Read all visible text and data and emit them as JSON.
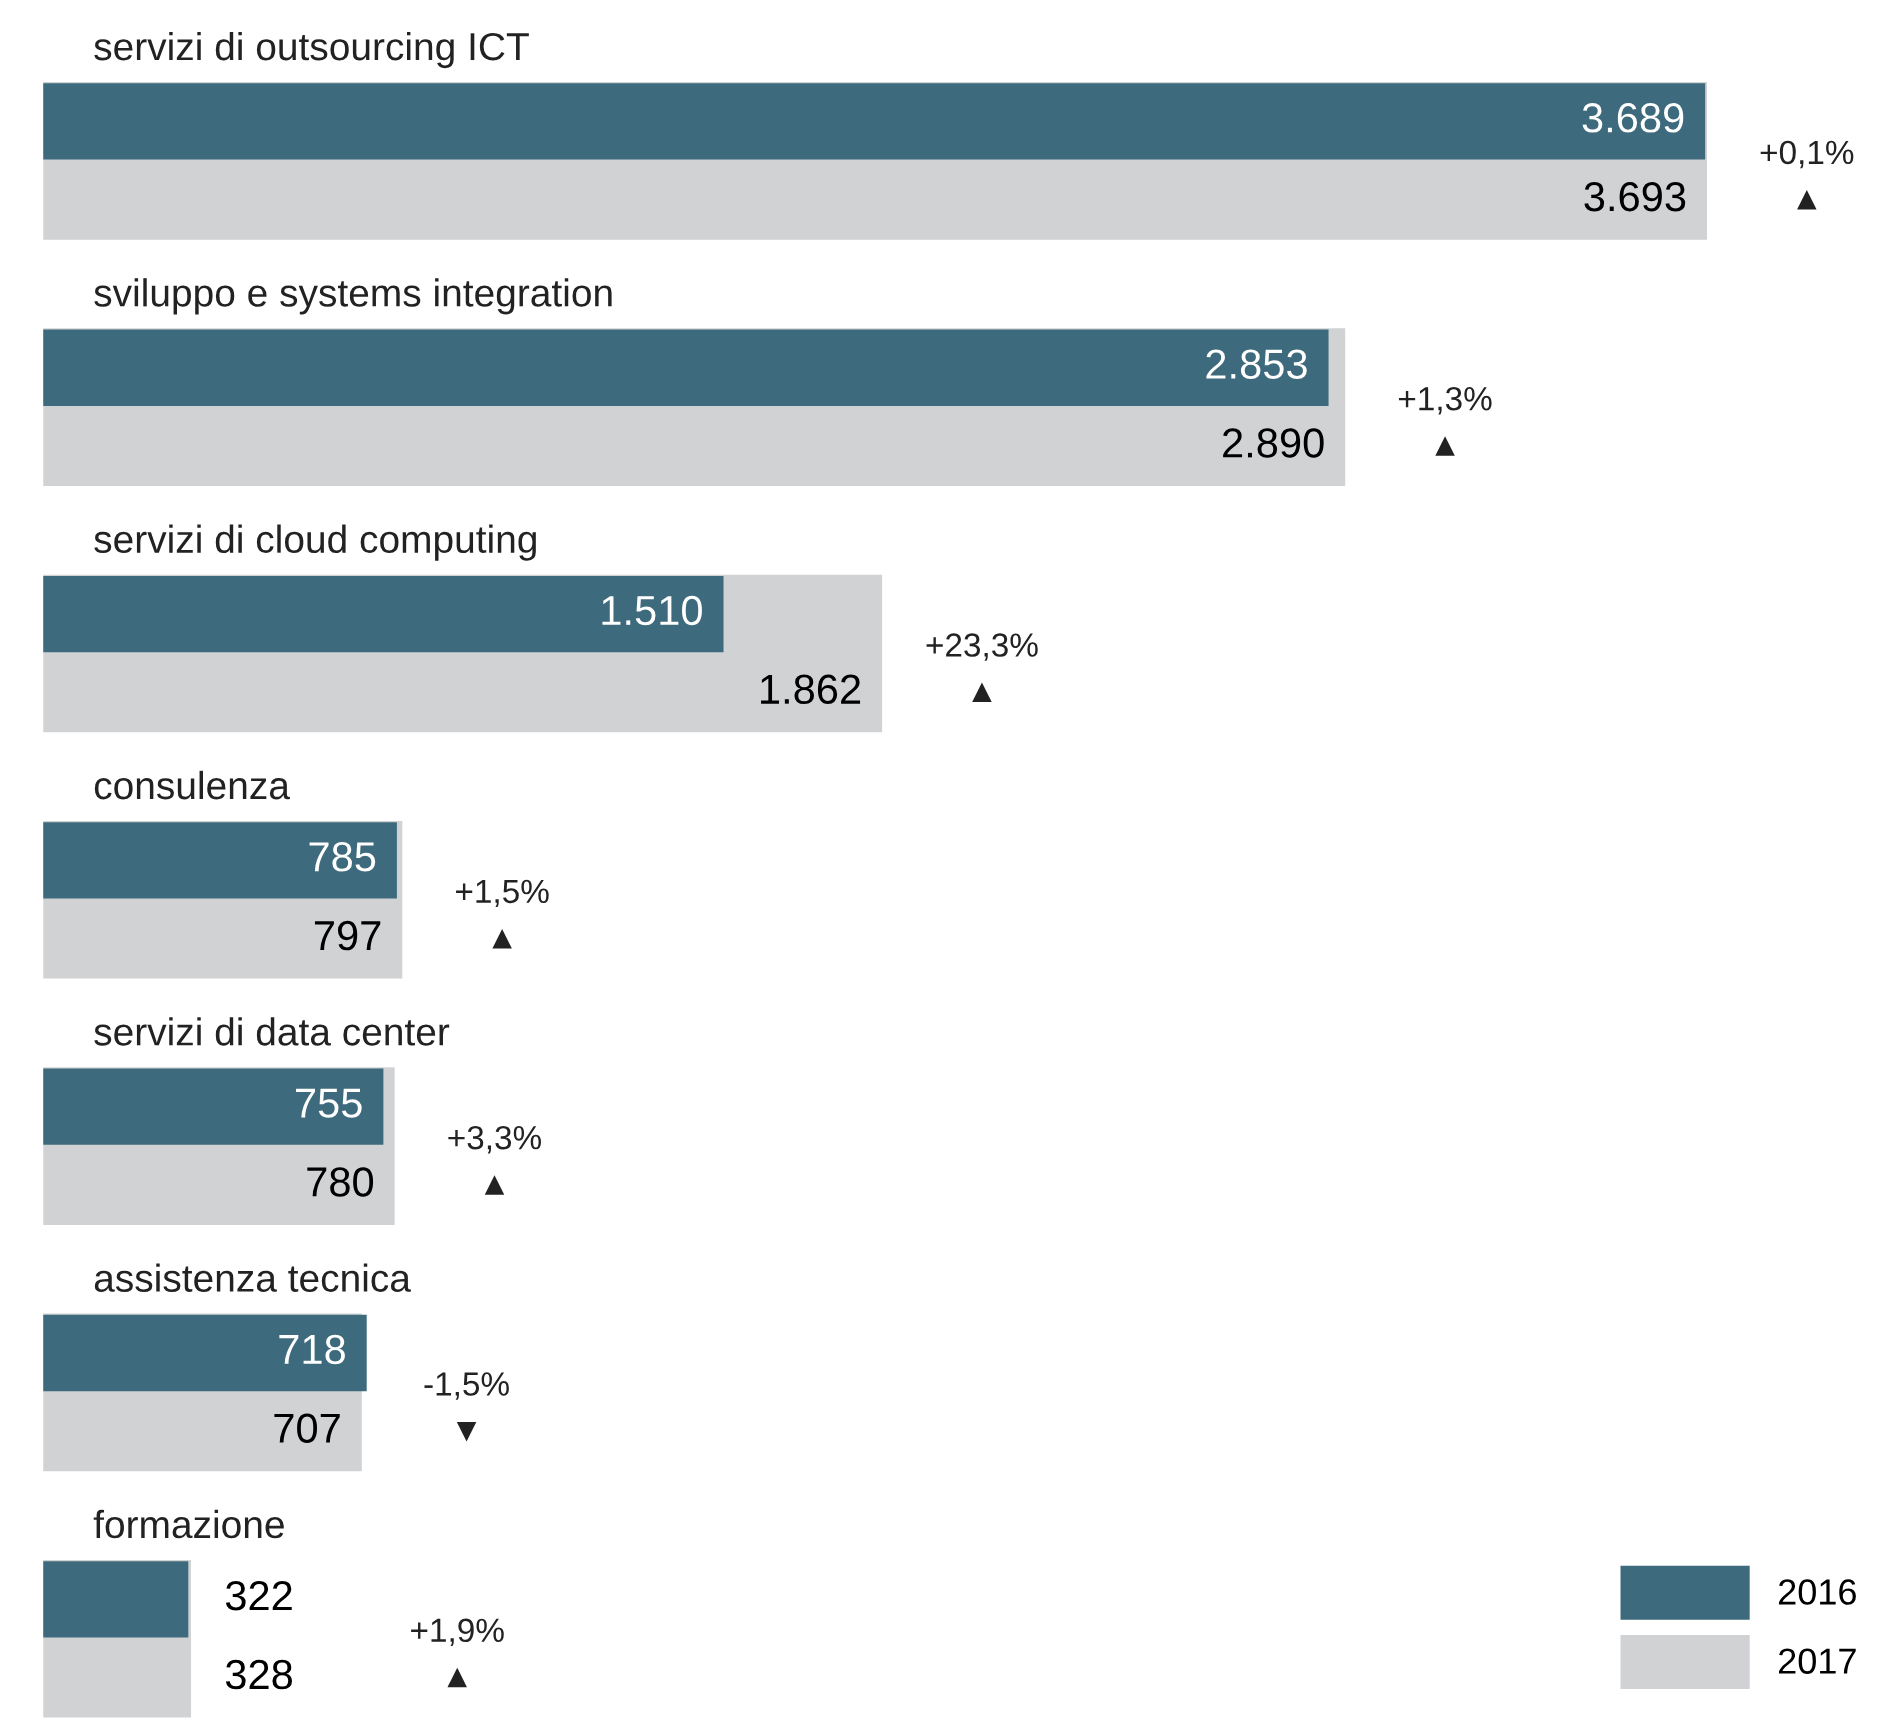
{
  "chart_data": {
    "type": "bar",
    "orientation": "horizontal",
    "categories": [
      "servizi di outsourcing ICT",
      "sviluppo e systems integration",
      "servizi di cloud computing",
      "consulenza",
      "servizi di data center",
      "assistenza tecnica",
      "formazione"
    ],
    "series": [
      {
        "name": "2016",
        "color": "#3d6b7d",
        "values": [
          3689,
          2853,
          1510,
          785,
          755,
          718,
          322
        ],
        "value_labels": [
          "3.689",
          "2.853",
          "1.510",
          "785",
          "755",
          "718",
          "322"
        ]
      },
      {
        "name": "2017",
        "color": "#d1d2d4",
        "values": [
          3693,
          2890,
          1862,
          797,
          780,
          707,
          328
        ],
        "value_labels": [
          "3.693",
          "2.890",
          "1.862",
          "797",
          "780",
          "707",
          "328"
        ]
      }
    ],
    "annotations": [
      "+0,1%\n▲",
      "+1,3%\n▲",
      "+23,3%\n▲",
      "+1,5%\n▲",
      "+3,3%\n▲",
      "-1,5%\n▼",
      "+1,9%\n▲"
    ],
    "legend": "bottom right"
  }
}
